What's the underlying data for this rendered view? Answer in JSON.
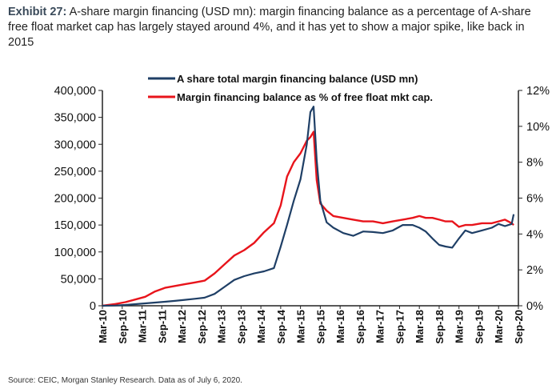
{
  "exhibit": {
    "label": "Exhibit 27:",
    "text": "A-share margin financing (USD mn): margin financing balance as a percentage of A-share free float market cap has largely stayed around 4%, and it has yet to show a major spike, like back in 2015"
  },
  "source": "Source: CEIC, Morgan Stanley Research. Data as of July 6, 2020.",
  "chart_data": {
    "type": "line",
    "left_axis": {
      "ylim": [
        0,
        400000
      ],
      "ticks": [
        "0",
        "50,000",
        "100,000",
        "150,000",
        "200,000",
        "250,000",
        "300,000",
        "350,000",
        "400,000"
      ]
    },
    "right_axis": {
      "ylim": [
        0,
        12
      ],
      "ticks": [
        "0%",
        "2%",
        "4%",
        "6%",
        "8%",
        "10%",
        "12%"
      ]
    },
    "xlim": [
      2010.17,
      2020.67
    ],
    "x_ticks": [
      "Mar-10",
      "Sep-10",
      "Mar-11",
      "Sep-11",
      "Mar-12",
      "Sep-12",
      "Mar-13",
      "Sep-13",
      "Mar-14",
      "Sep-14",
      "Mar-15",
      "Sep-15",
      "Mar-16",
      "Sep-16",
      "Mar-17",
      "Sep-17",
      "Mar-18",
      "Sep-18",
      "Mar-19",
      "Sep-19",
      "Mar-20",
      "Sep-20"
    ],
    "legend_position": "top-center",
    "series": [
      {
        "name": "A share total margin financing balance (USD mn)",
        "axis": "left",
        "color": "#1f3f66",
        "x": [
          2010.17,
          2010.5,
          2010.75,
          2011.0,
          2011.25,
          2011.5,
          2011.75,
          2012.0,
          2012.25,
          2012.5,
          2012.75,
          2013.0,
          2013.25,
          2013.5,
          2013.75,
          2014.0,
          2014.25,
          2014.5,
          2014.67,
          2014.83,
          2015.0,
          2015.17,
          2015.33,
          2015.42,
          2015.5,
          2015.58,
          2015.67,
          2015.83,
          2016.0,
          2016.25,
          2016.5,
          2016.75,
          2017.0,
          2017.25,
          2017.5,
          2017.75,
          2018.0,
          2018.17,
          2018.33,
          2018.5,
          2018.67,
          2018.83,
          2019.0,
          2019.17,
          2019.33,
          2019.5,
          2019.75,
          2020.0,
          2020.17,
          2020.33,
          2020.5,
          2020.55
        ],
        "y": [
          0,
          400,
          1500,
          3000,
          4500,
          6000,
          7500,
          9000,
          11000,
          13000,
          15000,
          22000,
          35000,
          48000,
          55000,
          60000,
          64000,
          70000,
          110000,
          150000,
          195000,
          235000,
          300000,
          360000,
          370000,
          270000,
          195000,
          155000,
          145000,
          135000,
          130000,
          138000,
          137000,
          135000,
          140000,
          150000,
          150000,
          145000,
          138000,
          125000,
          113000,
          110000,
          108000,
          125000,
          140000,
          135000,
          140000,
          145000,
          152000,
          148000,
          152000,
          170000
        ]
      },
      {
        "name": "Margin financing balance as % of free float mkt cap.",
        "axis": "right",
        "color": "#e8141b",
        "x": [
          2010.17,
          2010.5,
          2010.75,
          2011.0,
          2011.25,
          2011.5,
          2011.75,
          2012.0,
          2012.25,
          2012.5,
          2012.75,
          2013.0,
          2013.25,
          2013.5,
          2013.75,
          2014.0,
          2014.25,
          2014.5,
          2014.67,
          2014.83,
          2015.0,
          2015.17,
          2015.33,
          2015.42,
          2015.5,
          2015.58,
          2015.67,
          2015.83,
          2016.0,
          2016.25,
          2016.5,
          2016.75,
          2017.0,
          2017.25,
          2017.5,
          2017.75,
          2018.0,
          2018.17,
          2018.33,
          2018.5,
          2018.67,
          2018.83,
          2019.0,
          2019.17,
          2019.33,
          2019.5,
          2019.75,
          2020.0,
          2020.17,
          2020.33,
          2020.5,
          2020.55
        ],
        "y": [
          0.0,
          0.1,
          0.2,
          0.35,
          0.5,
          0.8,
          1.0,
          1.1,
          1.2,
          1.3,
          1.4,
          1.8,
          2.3,
          2.8,
          3.1,
          3.5,
          4.1,
          4.6,
          5.6,
          7.2,
          8.0,
          8.5,
          9.2,
          9.4,
          9.7,
          7.0,
          5.7,
          5.3,
          5.0,
          4.9,
          4.8,
          4.7,
          4.7,
          4.6,
          4.7,
          4.8,
          4.9,
          5.0,
          4.9,
          4.9,
          4.8,
          4.7,
          4.7,
          4.4,
          4.5,
          4.5,
          4.6,
          4.6,
          4.7,
          4.8,
          4.6,
          4.5
        ]
      }
    ]
  }
}
